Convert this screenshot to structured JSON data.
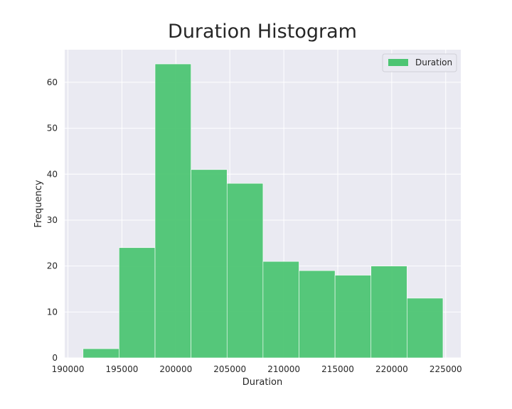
{
  "chart_data": {
    "type": "histogram",
    "title": "Duration Histogram",
    "xlabel": "Duration",
    "ylabel": "Frequency",
    "bins": [
      191400,
      194735,
      198070,
      201405,
      204740,
      208075,
      211410,
      214745,
      218080,
      221415,
      224750
    ],
    "values": [
      2,
      24,
      64,
      41,
      38,
      21,
      19,
      18,
      20,
      13
    ],
    "series_name": "Duration",
    "color": "#4dc573",
    "xlim": [
      189700,
      226400
    ],
    "ylim": [
      0,
      67.1
    ],
    "xticks": [
      190000,
      195000,
      200000,
      205000,
      210000,
      215000,
      220000,
      225000
    ],
    "yticks": [
      0,
      10,
      20,
      30,
      40,
      50,
      60
    ],
    "grid": true,
    "legend": "upper right"
  }
}
